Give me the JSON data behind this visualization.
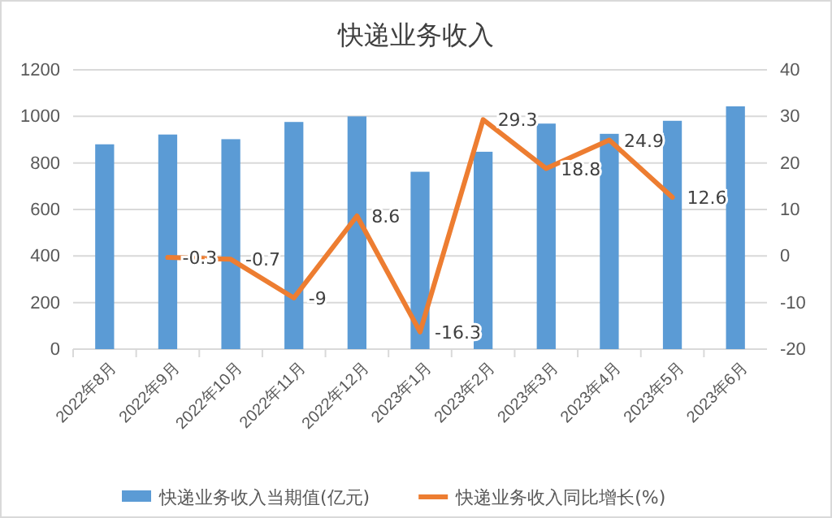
{
  "chart_data": {
    "type": "bar",
    "title": "快递业务收入",
    "categories": [
      "2022年8月",
      "2022年9月",
      "2022年10月",
      "2022年11月",
      "2022年12月",
      "2023年1月",
      "2023年2月",
      "2023年3月",
      "2023年4月",
      "2023年5月",
      "2023年6月"
    ],
    "series": [
      {
        "name": "快递业务收入当期值(亿元)",
        "color": "#5b9bd5",
        "values": [
          880,
          922,
          902,
          976,
          1000,
          762,
          848,
          969,
          925,
          981,
          1043
        ]
      },
      {
        "name": "快递业务收入同比增长(%)",
        "type": "line",
        "axis": "y2",
        "color": "#ed7d31",
        "data_labels": true,
        "values": [
          null,
          -0.3,
          -0.7,
          -9,
          8.6,
          -16.3,
          29.3,
          18.8,
          24.9,
          12.6,
          null
        ]
      }
    ],
    "ylim": [
      0,
      1200
    ],
    "yticks": [
      0,
      200,
      400,
      600,
      800,
      1000,
      1200
    ],
    "y2lim": [
      -20,
      40
    ],
    "y2ticks": [
      -20,
      -10,
      0,
      10,
      20,
      30,
      40
    ],
    "grid": "y",
    "legend": "bottom"
  }
}
